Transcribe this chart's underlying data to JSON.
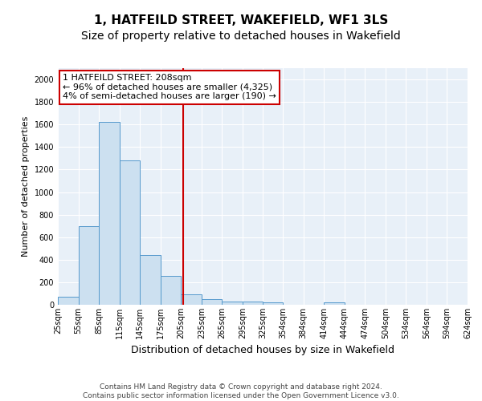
{
  "title": "1, HATFEILD STREET, WAKEFIELD, WF1 3LS",
  "subtitle": "Size of property relative to detached houses in Wakefield",
  "xlabel": "Distribution of detached houses by size in Wakefield",
  "ylabel": "Number of detached properties",
  "footer_line1": "Contains HM Land Registry data © Crown copyright and database right 2024.",
  "footer_line2": "Contains public sector information licensed under the Open Government Licence v3.0.",
  "bar_edges": [
    25,
    55,
    85,
    115,
    145,
    175,
    205,
    235,
    265,
    295,
    325,
    354,
    384,
    414,
    444,
    474,
    504,
    534,
    564,
    594,
    624
  ],
  "bar_heights": [
    68,
    700,
    1620,
    1280,
    440,
    255,
    95,
    50,
    32,
    28,
    18,
    0,
    0,
    20,
    0,
    0,
    0,
    0,
    0,
    0
  ],
  "bar_color": "#cce0f0",
  "bar_edge_color": "#5599cc",
  "property_size": 208,
  "vline_color": "#cc0000",
  "annotation_line1": "1 HATFEILD STREET: 208sqm",
  "annotation_line2": "← 96% of detached houses are smaller (4,325)",
  "annotation_line3": "4% of semi-detached houses are larger (190) →",
  "annotation_box_color": "#ffffff",
  "annotation_box_edge_color": "#cc0000",
  "ylim": [
    0,
    2100
  ],
  "yticks": [
    0,
    200,
    400,
    600,
    800,
    1000,
    1200,
    1400,
    1600,
    1800,
    2000
  ],
  "background_color": "#e8f0f8",
  "tick_labels": [
    "25sqm",
    "55sqm",
    "85sqm",
    "115sqm",
    "145sqm",
    "175sqm",
    "205sqm",
    "235sqm",
    "265sqm",
    "295sqm",
    "325sqm",
    "354sqm",
    "384sqm",
    "414sqm",
    "444sqm",
    "474sqm",
    "504sqm",
    "534sqm",
    "564sqm",
    "594sqm",
    "624sqm"
  ],
  "title_fontsize": 11,
  "subtitle_fontsize": 10,
  "xlabel_fontsize": 9,
  "ylabel_fontsize": 8,
  "tick_fontsize": 7,
  "annotation_fontsize": 8,
  "footer_fontsize": 6.5
}
